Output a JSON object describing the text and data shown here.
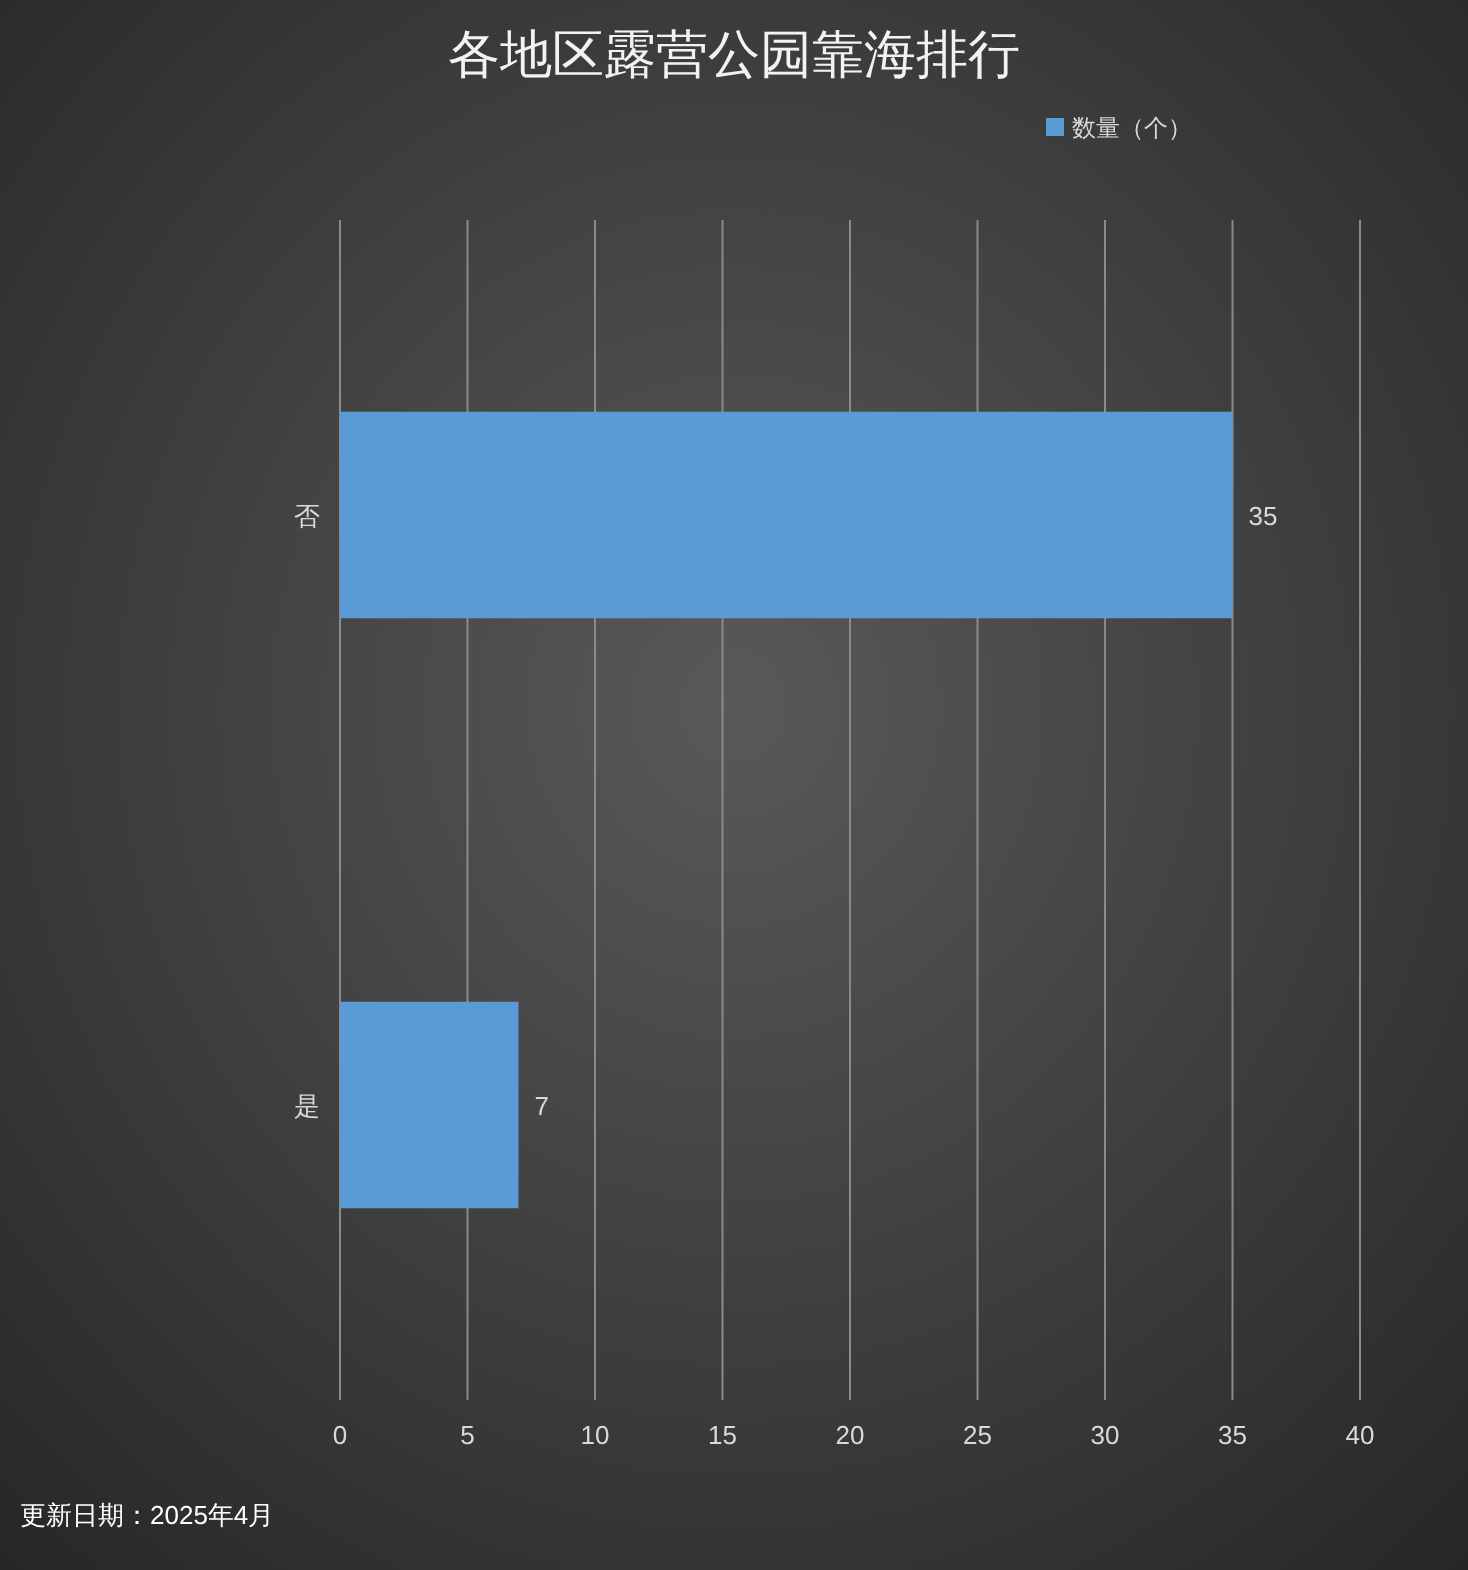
{
  "chart_data": {
    "type": "bar",
    "orientation": "horizontal",
    "title": "各地区露营公园靠海排行",
    "categories": [
      "否",
      "是"
    ],
    "series": [
      {
        "name": "数量（个）",
        "color": "#5b9bd5",
        "values": [
          35,
          7
        ]
      }
    ],
    "xlim": [
      0,
      40
    ],
    "xticks": [
      0,
      5,
      10,
      15,
      20,
      25,
      30,
      35,
      40
    ],
    "grid": "x",
    "legend": "top",
    "data_labels": true,
    "annotations": [
      "更新日期：2025年4月"
    ]
  }
}
